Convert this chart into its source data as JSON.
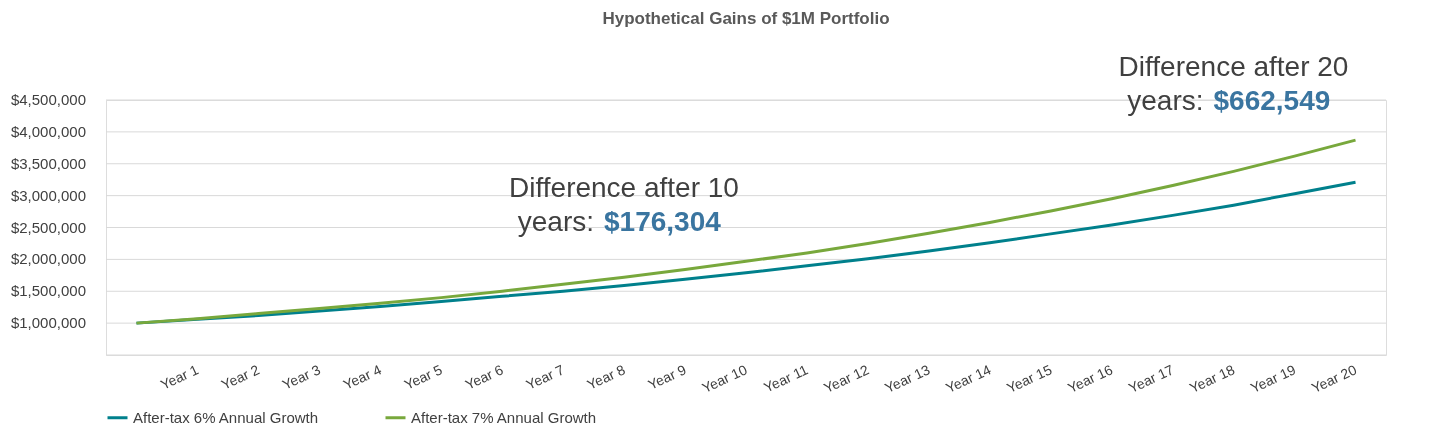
{
  "chart_data": {
    "type": "line",
    "title": "Hypothetical Gains of $1M Portfolio",
    "categories": [
      null,
      "Year 1",
      "Year 2",
      "Year 3",
      "Year 4",
      "Year 5",
      "Year 6",
      "Year 7",
      "Year 8",
      "Year 9",
      "Year 10",
      "Year 11",
      "Year 12",
      "Year 13",
      "Year 14",
      "Year 15",
      "Year 16",
      "Year 17",
      "Year 18",
      "Year 19",
      "Year 20"
    ],
    "series": [
      {
        "name": "After-tax 6% Annual Growth",
        "color": "#00808c",
        "values": [
          1000000,
          1060000,
          1120000,
          1190000,
          1260000,
          1340000,
          1420000,
          1500000,
          1590000,
          1690000,
          1790000,
          1900000,
          2010000,
          2130000,
          2260000,
          2400000,
          2540000,
          2690000,
          2850000,
          3030000,
          3210000
        ]
      },
      {
        "name": "After-tax 7% Annual Growth",
        "color": "#78a83c",
        "values": [
          1000000,
          1070000,
          1150000,
          1230000,
          1310000,
          1400000,
          1500000,
          1610000,
          1720000,
          1840000,
          1970000,
          2100000,
          2250000,
          2410000,
          2580000,
          2760000,
          2950000,
          3160000,
          3380000,
          3620000,
          3870000
        ]
      }
    ],
    "ylim": [
      500000,
      4500000
    ],
    "yticks": [
      {
        "value": 500000,
        "label": null
      },
      {
        "value": 1000000,
        "label": "$1,000,000"
      },
      {
        "value": 1500000,
        "label": "$1,500,000"
      },
      {
        "value": 2000000,
        "label": "$2,000,000"
      },
      {
        "value": 2500000,
        "label": "$2,500,000"
      },
      {
        "value": 3000000,
        "label": "$3,000,000"
      },
      {
        "value": 3500000,
        "label": "$3,500,000"
      },
      {
        "value": 4000000,
        "label": "$4,000,000"
      },
      {
        "value": 4500000,
        "label": "$4,500,000"
      }
    ],
    "grid": "y",
    "legend": "bottom",
    "marker": "none",
    "line_style": "solid",
    "annotations": [
      {
        "text": "Difference after 10 years: $176,304",
        "x": "Year 10",
        "y": 1970000
      },
      {
        "text": "Difference after 20 years: $662,549",
        "x": "Year 20",
        "y": 3870000
      }
    ]
  }
}
